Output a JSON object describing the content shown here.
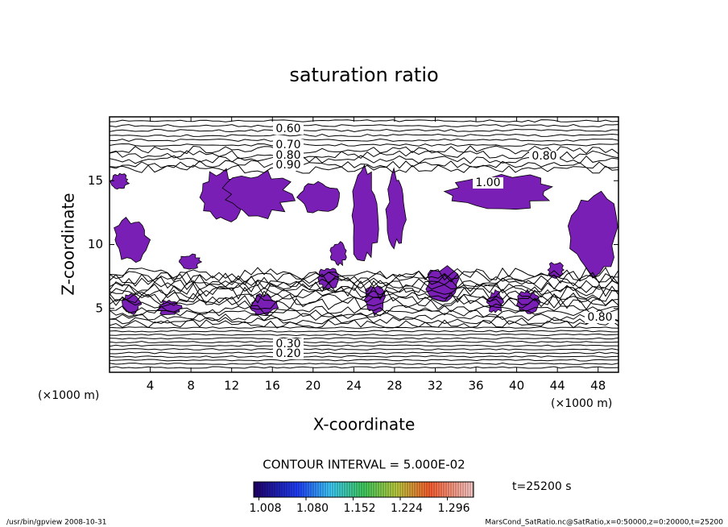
{
  "chart_data": {
    "type": "contour",
    "title": "saturation ratio",
    "xlabel": "X-coordinate",
    "ylabel": "Z-coordinate",
    "x_unit_labels": [
      "(×1000 m)",
      "(×1000 m)"
    ],
    "xlim": [
      0,
      50
    ],
    "xticks": [
      4,
      8,
      12,
      16,
      20,
      24,
      28,
      32,
      36,
      40,
      44,
      48
    ],
    "ylim": [
      0,
      20
    ],
    "yticks": [
      5,
      10,
      15
    ],
    "fill_color": "#7a1fb5",
    "contour_labels": [
      {
        "value": 0.6,
        "label": "0.60"
      },
      {
        "value": 0.7,
        "label": "0.70"
      },
      {
        "value": 0.8,
        "label": "0.80"
      },
      {
        "value": 0.9,
        "label": "0.90"
      },
      {
        "value": 0.8,
        "label": "0.80"
      },
      {
        "value": 1.0,
        "label": "1.00"
      },
      {
        "value": 0.3,
        "label": "0.30"
      },
      {
        "value": 0.2,
        "label": "0.20"
      },
      {
        "value": 0.8,
        "label": "0.80"
      }
    ],
    "contour_interval_text": "CONTOUR INTERVAL = 5.000E-02",
    "time_text": "t=25200 s",
    "colorbar_lim": [
      1.0,
      1.336
    ],
    "colorbar_ticks": [
      1.008,
      {
        "value": 1.08,
        "label": "1.080"
      },
      1.152,
      1.224,
      1.296
    ],
    "footer_left": "/usr/bin/gpview   2008-10-31",
    "footer_right": "MarsCond_SatRatio.nc@SatRatio,x=0:50000,z=0:20000,t=25200"
  }
}
